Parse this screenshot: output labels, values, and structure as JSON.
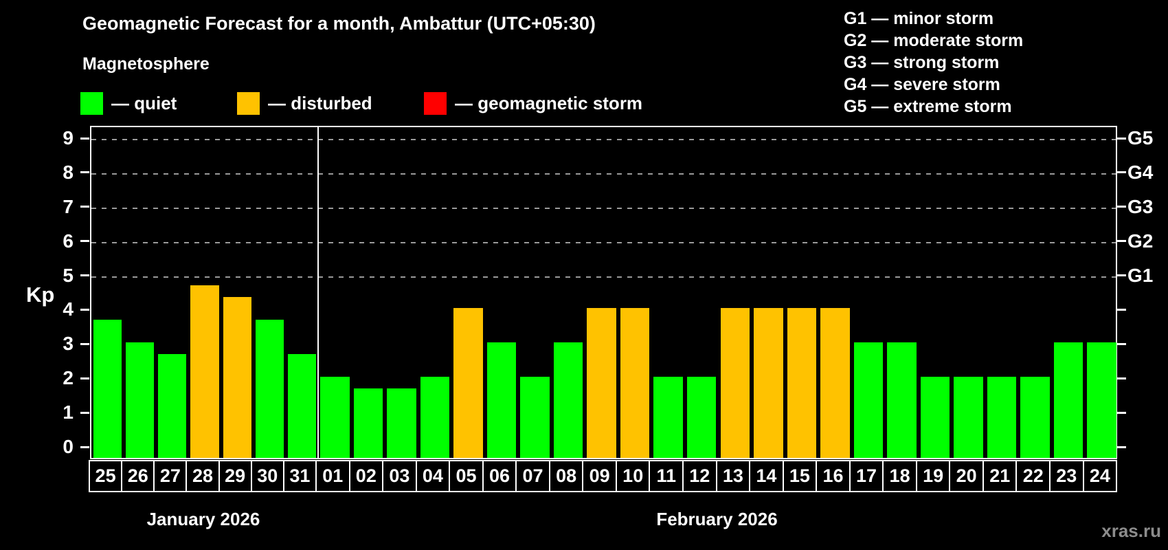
{
  "header": {
    "title": "Geomagnetic Forecast for a month, Ambattur (UTC+05:30)",
    "subtitle": "Magnetosphere",
    "legend": [
      {
        "key": "quiet",
        "label": "— quiet"
      },
      {
        "key": "disturbed",
        "label": "— disturbed"
      },
      {
        "key": "storm",
        "label": "— geomagnetic storm"
      }
    ],
    "g_scale_legend": [
      "G1 — minor storm",
      "G2 — moderate storm",
      "G3 — strong storm",
      "G4 — severe storm",
      "G5 — extreme storm"
    ]
  },
  "chart_data": {
    "type": "bar",
    "ylabel": "Kp",
    "ylim": [
      0,
      9
    ],
    "y_ticks": [
      0,
      1,
      2,
      3,
      4,
      5,
      6,
      7,
      8,
      9
    ],
    "gridlines_at": [
      5,
      6,
      7,
      8,
      9
    ],
    "right_axis_labels": [
      {
        "label": "G1",
        "kp": 5
      },
      {
        "label": "G2",
        "kp": 6
      },
      {
        "label": "G3",
        "kp": 7
      },
      {
        "label": "G4",
        "kp": 8
      },
      {
        "label": "G5",
        "kp": 9
      }
    ],
    "months": [
      {
        "label": "January 2026",
        "days": 7
      },
      {
        "label": "February 2026",
        "days": 24
      }
    ],
    "categories": [
      "25",
      "26",
      "27",
      "28",
      "29",
      "30",
      "31",
      "01",
      "02",
      "03",
      "04",
      "05",
      "06",
      "07",
      "08",
      "09",
      "10",
      "11",
      "12",
      "13",
      "14",
      "15",
      "16",
      "17",
      "18",
      "19",
      "20",
      "21",
      "22",
      "23",
      "24"
    ],
    "values": [
      3.67,
      3,
      2.67,
      4.67,
      4.33,
      3.67,
      2.67,
      2,
      1.67,
      1.67,
      2,
      4,
      3,
      2,
      3,
      4,
      4,
      2,
      2,
      4,
      4,
      4,
      4,
      3,
      3,
      2,
      2,
      2,
      2,
      3,
      3
    ],
    "status": [
      "quiet",
      "quiet",
      "quiet",
      "disturbed",
      "disturbed",
      "quiet",
      "quiet",
      "quiet",
      "quiet",
      "quiet",
      "quiet",
      "disturbed",
      "quiet",
      "quiet",
      "quiet",
      "disturbed",
      "disturbed",
      "quiet",
      "quiet",
      "disturbed",
      "disturbed",
      "disturbed",
      "disturbed",
      "quiet",
      "quiet",
      "quiet",
      "quiet",
      "quiet",
      "quiet",
      "quiet",
      "quiet"
    ],
    "colors": {
      "quiet": "#00ff00",
      "disturbed": "#ffc200",
      "storm": "#ff0000",
      "grid": "#9a9a9a",
      "axis": "#ffffff",
      "background": "#000000",
      "watermark": "#8c8c8c"
    }
  },
  "footer": {
    "watermark": "xras.ru"
  }
}
